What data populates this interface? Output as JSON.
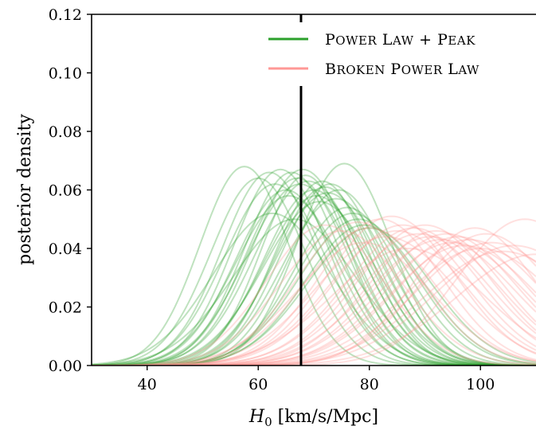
{
  "chart_data": {
    "type": "line",
    "xlabel": "H_0 [km/s/Mpc]",
    "ylabel": "posterior density",
    "xlim": [
      30,
      110
    ],
    "ylim": [
      0,
      0.12
    ],
    "x_ticks": [
      40,
      60,
      80,
      100
    ],
    "x_tick_labels": [
      "40",
      "60",
      "80",
      "100"
    ],
    "y_ticks": [
      0,
      0.02,
      0.04,
      0.06,
      0.08,
      0.1,
      0.12
    ],
    "y_tick_labels": [
      "0.00",
      "0.02",
      "0.04",
      "0.06",
      "0.08",
      "0.10",
      "0.12"
    ],
    "grid": false,
    "legend_position": "top-right",
    "reference_line_x": 67.7,
    "series": [
      {
        "name": "Power Law + Peak",
        "color": "#2ca02c",
        "opacity": 0.3,
        "curves": [
          {
            "mu": 57.5,
            "sigma": 8.0,
            "peak": 0.068
          },
          {
            "mu": 60.0,
            "sigma": 8.5,
            "peak": 0.064
          },
          {
            "mu": 62.0,
            "sigma": 8.5,
            "peak": 0.066
          },
          {
            "mu": 63.0,
            "sigma": 9.0,
            "peak": 0.062
          },
          {
            "mu": 64.0,
            "sigma": 8.5,
            "peak": 0.067
          },
          {
            "mu": 65.0,
            "sigma": 9.0,
            "peak": 0.06
          },
          {
            "mu": 65.5,
            "sigma": 9.5,
            "peak": 0.058
          },
          {
            "mu": 66.0,
            "sigma": 8.5,
            "peak": 0.066
          },
          {
            "mu": 67.0,
            "sigma": 9.0,
            "peak": 0.064
          },
          {
            "mu": 67.5,
            "sigma": 9.5,
            "peak": 0.062
          },
          {
            "mu": 68.0,
            "sigma": 9.0,
            "peak": 0.067
          },
          {
            "mu": 69.0,
            "sigma": 9.5,
            "peak": 0.063
          },
          {
            "mu": 70.0,
            "sigma": 9.0,
            "peak": 0.06
          },
          {
            "mu": 70.5,
            "sigma": 9.5,
            "peak": 0.058
          },
          {
            "mu": 71.0,
            "sigma": 10.0,
            "peak": 0.056
          },
          {
            "mu": 72.0,
            "sigma": 9.0,
            "peak": 0.061
          },
          {
            "mu": 72.5,
            "sigma": 9.5,
            "peak": 0.059
          },
          {
            "mu": 73.0,
            "sigma": 9.0,
            "peak": 0.062
          },
          {
            "mu": 74.0,
            "sigma": 9.5,
            "peak": 0.057
          },
          {
            "mu": 74.5,
            "sigma": 9.0,
            "peak": 0.06
          },
          {
            "mu": 75.5,
            "sigma": 8.5,
            "peak": 0.069
          },
          {
            "mu": 76.0,
            "sigma": 9.5,
            "peak": 0.054
          },
          {
            "mu": 77.0,
            "sigma": 10.0,
            "peak": 0.052
          },
          {
            "mu": 78.0,
            "sigma": 10.5,
            "peak": 0.05
          },
          {
            "mu": 79.0,
            "sigma": 10.5,
            "peak": 0.048
          },
          {
            "mu": 80.0,
            "sigma": 11.0,
            "peak": 0.047
          },
          {
            "mu": 62.5,
            "sigma": 10.5,
            "peak": 0.052
          },
          {
            "mu": 66.5,
            "sigma": 11.0,
            "peak": 0.05
          },
          {
            "mu": 68.5,
            "sigma": 8.0,
            "peak": 0.065
          },
          {
            "mu": 71.5,
            "sigma": 8.5,
            "peak": 0.063
          }
        ]
      },
      {
        "name": "Broken Power Law",
        "color": "#ff9896",
        "opacity": 0.3,
        "curves": [
          {
            "mu": 72.0,
            "sigma": 10.5,
            "peak": 0.048
          },
          {
            "mu": 75.0,
            "sigma": 11.0,
            "peak": 0.046
          },
          {
            "mu": 78.0,
            "sigma": 11.0,
            "peak": 0.049
          },
          {
            "mu": 80.0,
            "sigma": 11.5,
            "peak": 0.047
          },
          {
            "mu": 82.0,
            "sigma": 11.0,
            "peak": 0.05
          },
          {
            "mu": 84.0,
            "sigma": 11.5,
            "peak": 0.051
          },
          {
            "mu": 85.0,
            "sigma": 12.0,
            "peak": 0.046
          },
          {
            "mu": 86.0,
            "sigma": 12.0,
            "peak": 0.048
          },
          {
            "mu": 88.0,
            "sigma": 12.0,
            "peak": 0.047
          },
          {
            "mu": 89.0,
            "sigma": 12.5,
            "peak": 0.045
          },
          {
            "mu": 90.0,
            "sigma": 12.0,
            "peak": 0.048
          },
          {
            "mu": 91.0,
            "sigma": 12.5,
            "peak": 0.044
          },
          {
            "mu": 92.0,
            "sigma": 12.0,
            "peak": 0.046
          },
          {
            "mu": 93.0,
            "sigma": 13.0,
            "peak": 0.043
          },
          {
            "mu": 94.0,
            "sigma": 12.5,
            "peak": 0.045
          },
          {
            "mu": 95.0,
            "sigma": 13.0,
            "peak": 0.042
          },
          {
            "mu": 96.0,
            "sigma": 12.5,
            "peak": 0.044
          },
          {
            "mu": 97.0,
            "sigma": 13.0,
            "peak": 0.041
          },
          {
            "mu": 98.0,
            "sigma": 13.0,
            "peak": 0.043
          },
          {
            "mu": 100.0,
            "sigma": 13.5,
            "peak": 0.04
          },
          {
            "mu": 102.0,
            "sigma": 13.5,
            "peak": 0.042
          },
          {
            "mu": 104.0,
            "sigma": 14.0,
            "peak": 0.039
          },
          {
            "mu": 106.0,
            "sigma": 14.0,
            "peak": 0.041
          },
          {
            "mu": 108.0,
            "sigma": 12.0,
            "peak": 0.05
          },
          {
            "mu": 110.0,
            "sigma": 14.5,
            "peak": 0.038
          },
          {
            "mu": 87.0,
            "sigma": 13.5,
            "peak": 0.04
          },
          {
            "mu": 83.0,
            "sigma": 12.5,
            "peak": 0.044
          },
          {
            "mu": 79.0,
            "sigma": 12.0,
            "peak": 0.042
          },
          {
            "mu": 99.0,
            "sigma": 11.0,
            "peak": 0.047
          },
          {
            "mu": 101.0,
            "sigma": 12.0,
            "peak": 0.045
          }
        ]
      }
    ]
  }
}
